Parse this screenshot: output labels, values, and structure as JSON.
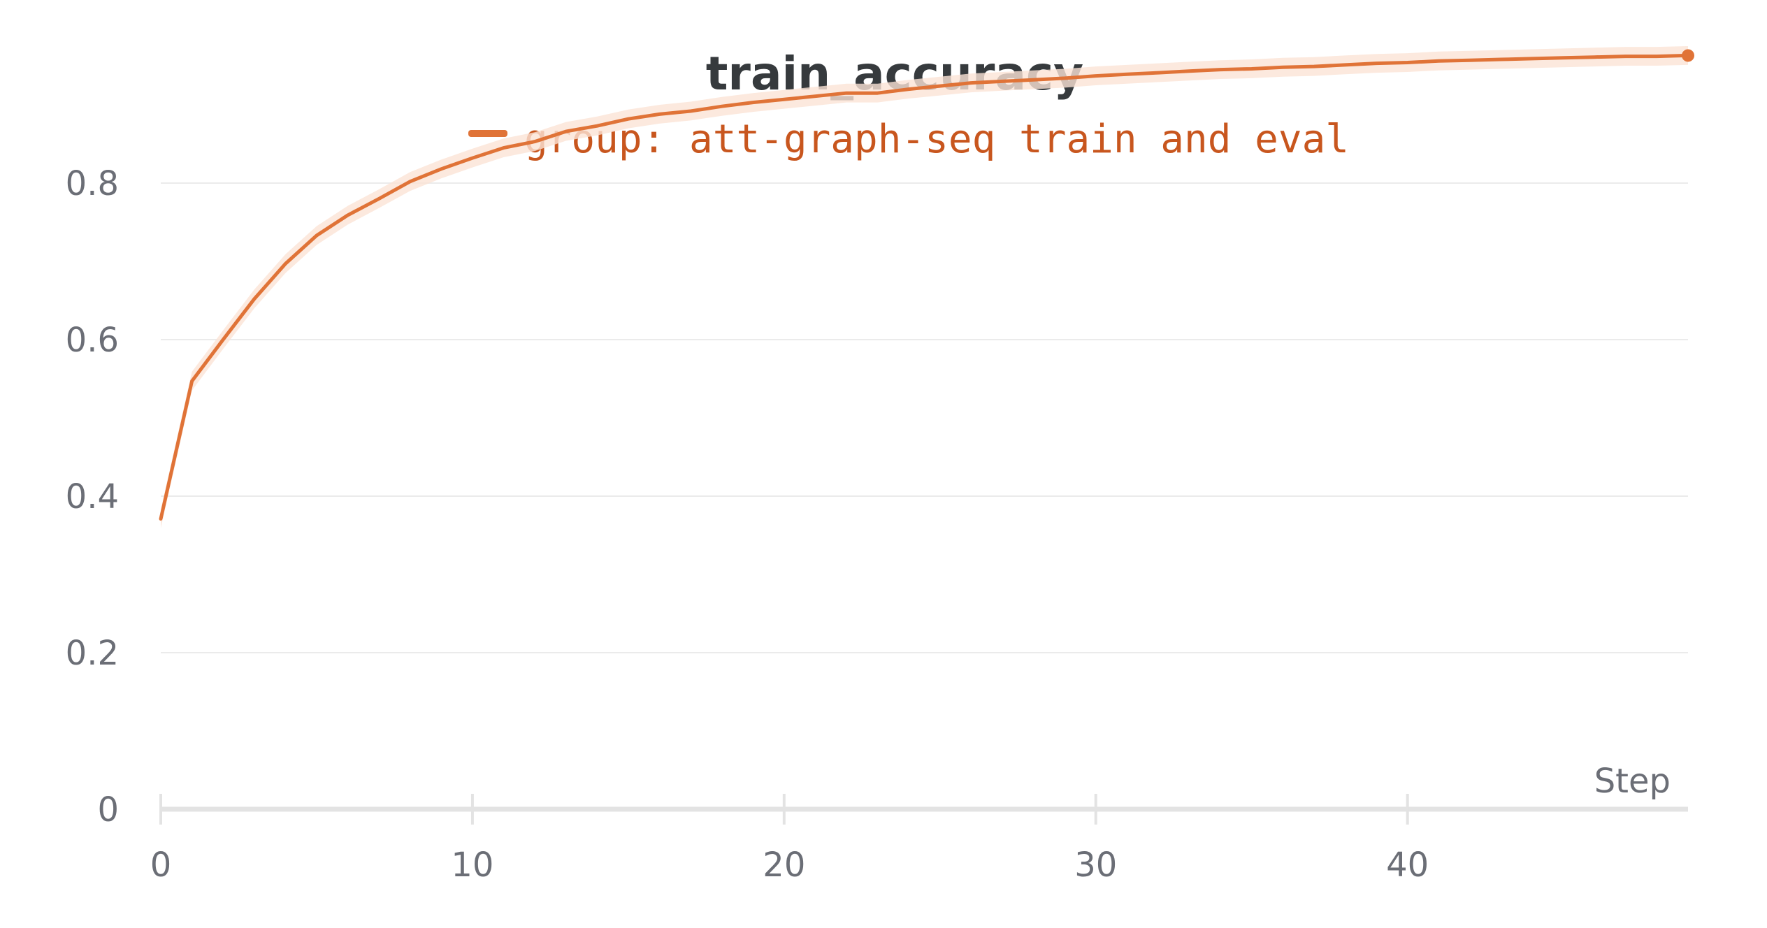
{
  "chart_data": {
    "type": "line",
    "title": "train_accuracy",
    "xlabel": "Step",
    "ylabel": "",
    "xlim": [
      0,
      49
    ],
    "ylim": [
      0,
      1.0
    ],
    "x_ticks": [
      0,
      10,
      20,
      30,
      40
    ],
    "y_ticks": [
      0,
      0.2,
      0.4,
      0.6,
      0.8
    ],
    "y_tick_labels": [
      "0",
      "0.2",
      "0.4",
      "0.6",
      "0.8"
    ],
    "grid": true,
    "legend_position": "top-center",
    "series": [
      {
        "name": "group: att-graph-seq train and eval",
        "color": "#e07337",
        "band_color": "#fbe3d6",
        "x": [
          0,
          1,
          2,
          3,
          4,
          5,
          6,
          7,
          8,
          9,
          10,
          11,
          12,
          13,
          14,
          15,
          16,
          17,
          18,
          19,
          20,
          21,
          22,
          23,
          24,
          25,
          26,
          27,
          28,
          29,
          30,
          31,
          32,
          33,
          34,
          35,
          36,
          37,
          38,
          39,
          40,
          41,
          42,
          43,
          44,
          45,
          46,
          47,
          48,
          49
        ],
        "values": [
          0.371,
          0.547,
          0.6,
          0.652,
          0.697,
          0.733,
          0.759,
          0.78,
          0.802,
          0.818,
          0.832,
          0.845,
          0.853,
          0.866,
          0.873,
          0.882,
          0.888,
          0.892,
          0.898,
          0.903,
          0.907,
          0.911,
          0.915,
          0.915,
          0.92,
          0.924,
          0.928,
          0.93,
          0.932,
          0.934,
          0.937,
          0.939,
          0.941,
          0.943,
          0.945,
          0.946,
          0.948,
          0.949,
          0.951,
          0.953,
          0.954,
          0.956,
          0.957,
          0.958,
          0.959,
          0.96,
          0.961,
          0.962,
          0.962,
          0.963
        ],
        "band": 0.012
      }
    ]
  }
}
